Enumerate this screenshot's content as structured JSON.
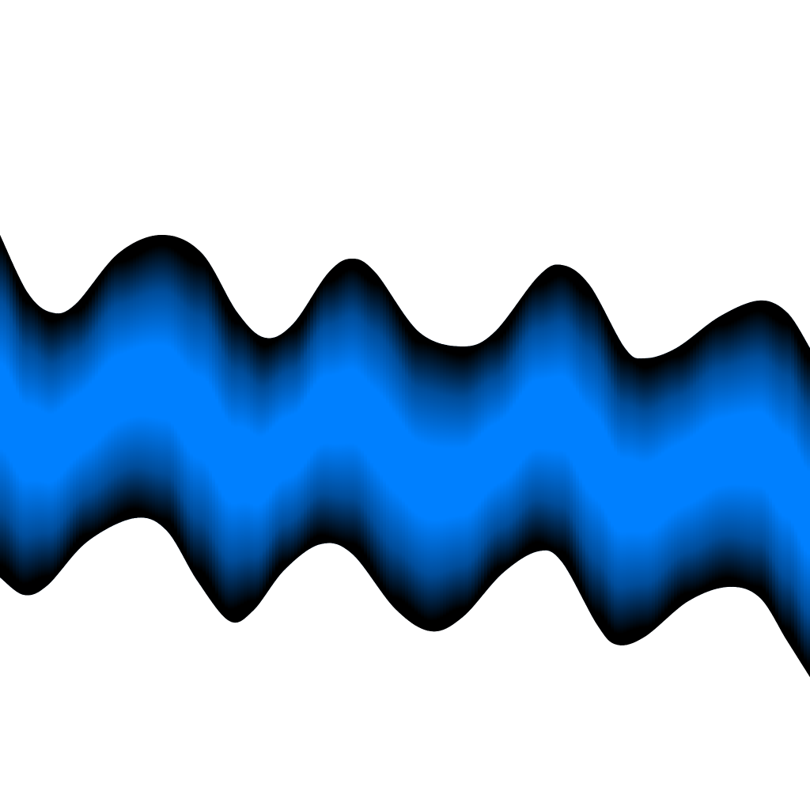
{
  "scene": {
    "background_color": "#ffffff",
    "shape": "wavy-ribbon",
    "fill_center_color": "#0080ff",
    "edge_shade_color": "#000000"
  }
}
